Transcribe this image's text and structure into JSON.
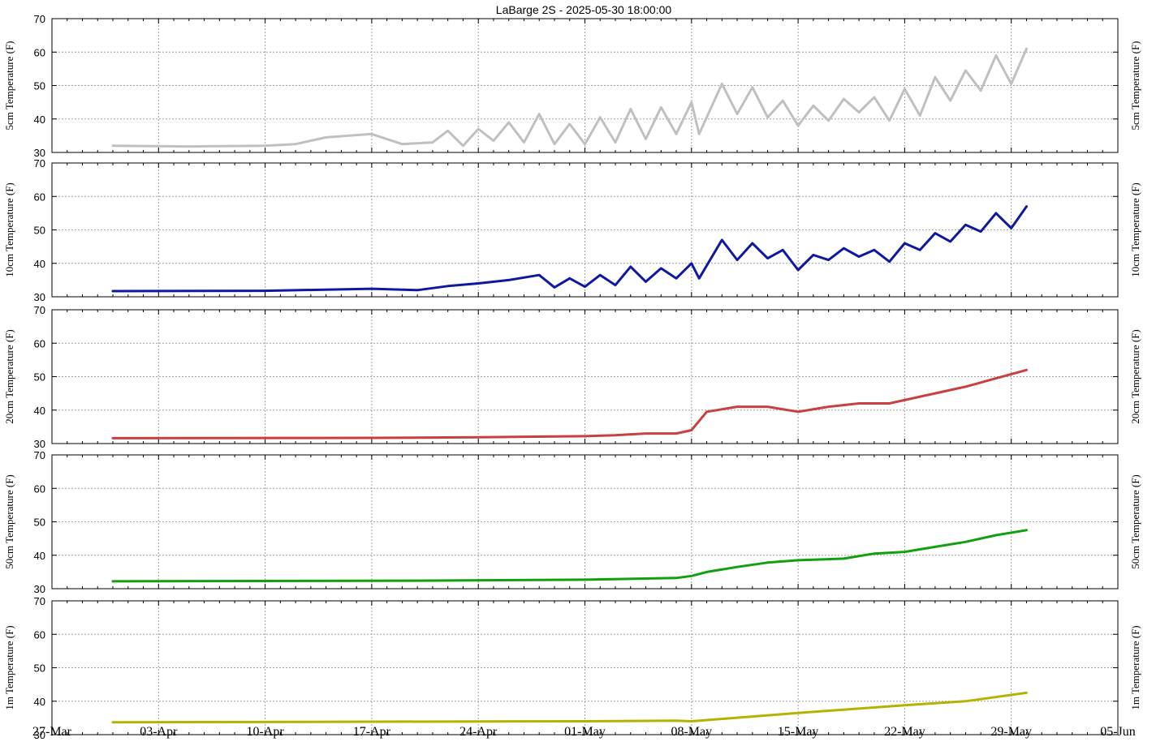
{
  "chart_data": {
    "type": "line",
    "title": "LaBarge 2S - 2025-05-30 18:00:00",
    "x_axis": {
      "range": [
        "2025-03-27",
        "2025-06-05"
      ],
      "tick_labels": [
        "27-Mar",
        "03-Apr",
        "10-Apr",
        "17-Apr",
        "24-Apr",
        "01-May",
        "08-May",
        "15-May",
        "22-May",
        "29-May",
        "05-Jun"
      ],
      "tick_dates": [
        "2025-03-27",
        "2025-04-03",
        "2025-04-10",
        "2025-04-17",
        "2025-04-24",
        "2025-05-01",
        "2025-05-08",
        "2025-05-15",
        "2025-05-22",
        "2025-05-29",
        "2025-06-05"
      ],
      "grid": true
    },
    "y_axis": {
      "range": [
        30,
        70
      ],
      "tick_labels": [
        "30",
        "40",
        "50",
        "60",
        "70"
      ],
      "grid": true
    },
    "panels": [
      {
        "ylabel": "5cm Temperature (F)",
        "color": "#c0c0c0",
        "points": [
          [
            "2025-03-31",
            32.0
          ],
          [
            "2025-04-05",
            31.8
          ],
          [
            "2025-04-10",
            32.0
          ],
          [
            "2025-04-12",
            32.5
          ],
          [
            "2025-04-14",
            34.5
          ],
          [
            "2025-04-17",
            35.5
          ],
          [
            "2025-04-19",
            32.5
          ],
          [
            "2025-04-21",
            33.0
          ],
          [
            "2025-04-22",
            36.5
          ],
          [
            "2025-04-23",
            32.0
          ],
          [
            "2025-04-24",
            37.0
          ],
          [
            "2025-04-25",
            33.5
          ],
          [
            "2025-04-26",
            39.0
          ],
          [
            "2025-04-27",
            33.0
          ],
          [
            "2025-04-28",
            41.5
          ],
          [
            "2025-04-29",
            32.5
          ],
          [
            "2025-04-30",
            38.5
          ],
          [
            "2025-05-01",
            32.5
          ],
          [
            "2025-05-02",
            40.5
          ],
          [
            "2025-05-03",
            33.0
          ],
          [
            "2025-05-04",
            43.0
          ],
          [
            "2025-05-05",
            34.0
          ],
          [
            "2025-05-06",
            43.5
          ],
          [
            "2025-05-07",
            35.5
          ],
          [
            "2025-05-08",
            45.0
          ],
          [
            "2025-05-08T12:00:00",
            35.5
          ],
          [
            "2025-05-10",
            50.5
          ],
          [
            "2025-05-11",
            41.5
          ],
          [
            "2025-05-12",
            49.5
          ],
          [
            "2025-05-13",
            40.5
          ],
          [
            "2025-05-14",
            45.5
          ],
          [
            "2025-05-15",
            38.0
          ],
          [
            "2025-05-16",
            44.0
          ],
          [
            "2025-05-17",
            39.5
          ],
          [
            "2025-05-18",
            46.0
          ],
          [
            "2025-05-19",
            42.0
          ],
          [
            "2025-05-20",
            46.5
          ],
          [
            "2025-05-21",
            39.5
          ],
          [
            "2025-05-22",
            49.0
          ],
          [
            "2025-05-23",
            41.0
          ],
          [
            "2025-05-24",
            52.5
          ],
          [
            "2025-05-25",
            45.5
          ],
          [
            "2025-05-26",
            54.5
          ],
          [
            "2025-05-27",
            48.5
          ],
          [
            "2025-05-28",
            59.0
          ],
          [
            "2025-05-29",
            50.5
          ],
          [
            "2025-05-30",
            61.0
          ]
        ]
      },
      {
        "ylabel": "10cm Temperature (F)",
        "color": "#0f18a0",
        "points": [
          [
            "2025-03-31",
            31.7
          ],
          [
            "2025-04-10",
            31.8
          ],
          [
            "2025-04-17",
            32.4
          ],
          [
            "2025-04-20",
            32.0
          ],
          [
            "2025-04-22",
            33.2
          ],
          [
            "2025-04-24",
            34.0
          ],
          [
            "2025-04-26",
            35.0
          ],
          [
            "2025-04-28",
            36.5
          ],
          [
            "2025-04-29",
            32.8
          ],
          [
            "2025-04-30",
            35.5
          ],
          [
            "2025-05-01",
            33.0
          ],
          [
            "2025-05-02",
            36.5
          ],
          [
            "2025-05-03",
            33.5
          ],
          [
            "2025-05-04",
            39.0
          ],
          [
            "2025-05-05",
            34.5
          ],
          [
            "2025-05-06",
            38.5
          ],
          [
            "2025-05-07",
            35.5
          ],
          [
            "2025-05-08",
            40.0
          ],
          [
            "2025-05-08T12:00:00",
            35.5
          ],
          [
            "2025-05-10",
            47.0
          ],
          [
            "2025-05-11",
            41.0
          ],
          [
            "2025-05-12",
            46.0
          ],
          [
            "2025-05-13",
            41.5
          ],
          [
            "2025-05-14",
            44.0
          ],
          [
            "2025-05-15",
            38.0
          ],
          [
            "2025-05-16",
            42.5
          ],
          [
            "2025-05-17",
            41.0
          ],
          [
            "2025-05-18",
            44.5
          ],
          [
            "2025-05-19",
            42.0
          ],
          [
            "2025-05-20",
            44.0
          ],
          [
            "2025-05-21",
            40.5
          ],
          [
            "2025-05-22",
            46.0
          ],
          [
            "2025-05-23",
            44.0
          ],
          [
            "2025-05-24",
            49.0
          ],
          [
            "2025-05-25",
            46.5
          ],
          [
            "2025-05-26",
            51.5
          ],
          [
            "2025-05-27",
            49.5
          ],
          [
            "2025-05-28",
            55.0
          ],
          [
            "2025-05-29",
            50.5
          ],
          [
            "2025-05-30",
            57.0
          ]
        ]
      },
      {
        "ylabel": "20cm Temperature (F)",
        "color": "#c84040",
        "points": [
          [
            "2025-03-31",
            31.6
          ],
          [
            "2025-04-17",
            31.7
          ],
          [
            "2025-04-24",
            31.9
          ],
          [
            "2025-05-01",
            32.2
          ],
          [
            "2025-05-03",
            32.5
          ],
          [
            "2025-05-05",
            33.0
          ],
          [
            "2025-05-07",
            33.0
          ],
          [
            "2025-05-08",
            34.0
          ],
          [
            "2025-05-09",
            39.5
          ],
          [
            "2025-05-11",
            41.0
          ],
          [
            "2025-05-13",
            41.0
          ],
          [
            "2025-05-15",
            39.5
          ],
          [
            "2025-05-17",
            41.0
          ],
          [
            "2025-05-19",
            42.0
          ],
          [
            "2025-05-21",
            42.0
          ],
          [
            "2025-05-22",
            43.0
          ],
          [
            "2025-05-24",
            45.0
          ],
          [
            "2025-05-26",
            47.0
          ],
          [
            "2025-05-28",
            49.5
          ],
          [
            "2025-05-30",
            52.0
          ]
        ]
      },
      {
        "ylabel": "50cm Temperature (F)",
        "color": "#10a010",
        "points": [
          [
            "2025-03-31",
            32.2
          ],
          [
            "2025-04-20",
            32.4
          ],
          [
            "2025-05-01",
            32.7
          ],
          [
            "2025-05-07",
            33.2
          ],
          [
            "2025-05-08",
            33.8
          ],
          [
            "2025-05-09",
            35.0
          ],
          [
            "2025-05-11",
            36.5
          ],
          [
            "2025-05-13",
            37.8
          ],
          [
            "2025-05-15",
            38.5
          ],
          [
            "2025-05-18",
            39.0
          ],
          [
            "2025-05-20",
            40.5
          ],
          [
            "2025-05-22",
            41.0
          ],
          [
            "2025-05-24",
            42.5
          ],
          [
            "2025-05-26",
            44.0
          ],
          [
            "2025-05-28",
            46.0
          ],
          [
            "2025-05-30",
            47.5
          ]
        ]
      },
      {
        "ylabel": "1m Temperature (F)",
        "color": "#b4b400",
        "points": [
          [
            "2025-03-31",
            33.7
          ],
          [
            "2025-05-01",
            34.0
          ],
          [
            "2025-05-07",
            34.2
          ],
          [
            "2025-05-08",
            34.0
          ],
          [
            "2025-05-15",
            36.5
          ],
          [
            "2025-05-22",
            38.8
          ],
          [
            "2025-05-26",
            40.0
          ],
          [
            "2025-05-30",
            42.5
          ]
        ]
      }
    ]
  }
}
